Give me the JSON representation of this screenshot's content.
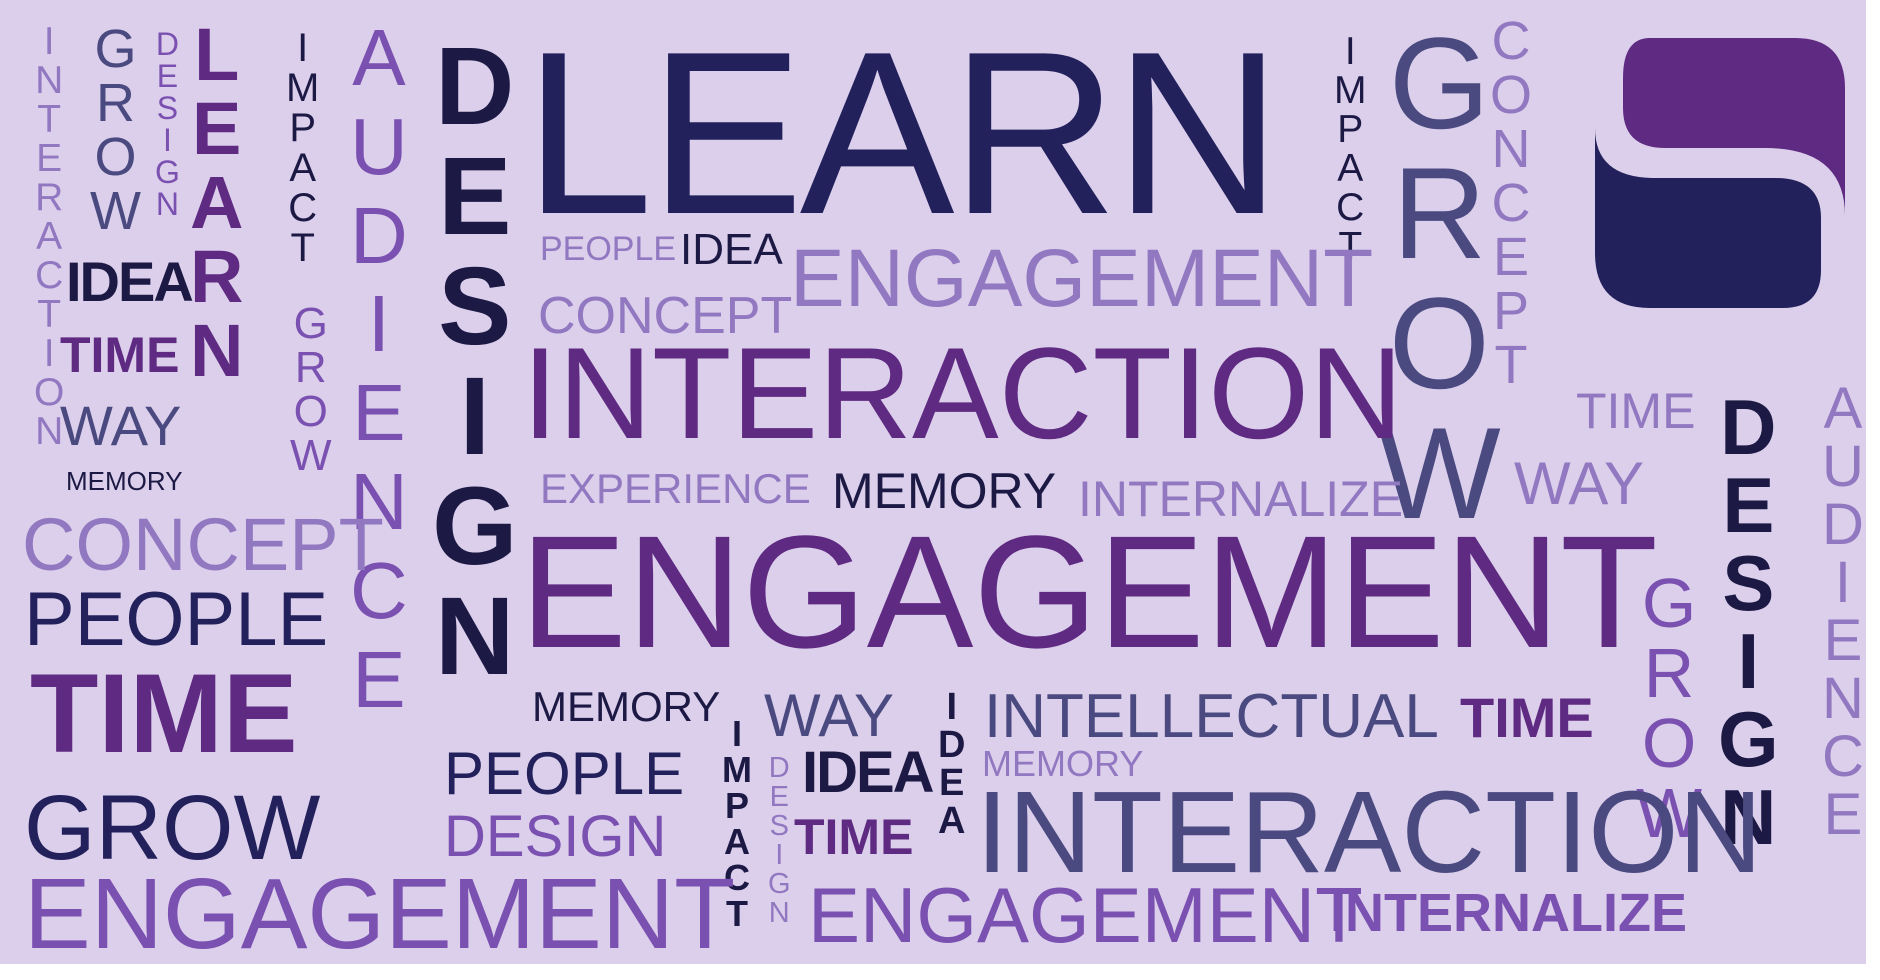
{
  "palette": {
    "background": "#dccfeb",
    "navy": "#23215c",
    "dark": "#1c1a45",
    "purple": "#5f2b82",
    "violet": "#7a50b0",
    "lavender": "#9178c0",
    "slate": "#4a4a80"
  },
  "logo": {
    "icon": "s-shape-logo",
    "top_color": "#5f2b82",
    "bottom_color": "#23215c"
  },
  "words": {
    "learn_big": "LEARN",
    "design_v1": "DESIGN",
    "learn_v": "LEARN",
    "interaction_big": "INTERACTION",
    "engagement_big": "ENGAGEMENT",
    "engagement_mid": "ENGAGEMENT",
    "engagement_bottom_left": "ENGAGEMENT",
    "engagement_bottom_mid": "ENGAGEMENT",
    "interaction_thin": "INTERACTION",
    "interaction_v": "INTERACTION",
    "grow_v1": "GROW",
    "design_v_small": "DESIGN",
    "impact_v1": "IMPACT",
    "grow_v2": "GROW",
    "audience_v1": "AUDIENCE",
    "impact_v2": "IMPACT",
    "grow_big_v": "GROW",
    "concept_v": "CONCEPT",
    "design_v2": "DESIGN",
    "audience_v2": "AUDIENCE",
    "grow_v3": "GROW",
    "impact_v3": "IMPACT",
    "design_v3": "DESIGN",
    "idea_v": "IDEA",
    "idea_1": "IDEA",
    "time_1": "TIME",
    "way_1": "WAY",
    "memory_1": "MEMORY",
    "concept_1": "CONCEPT",
    "people_1": "PEOPLE",
    "time_big": "TIME",
    "grow_big": "GROW",
    "people_small": "PEOPLE",
    "idea_2": "IDEA",
    "concept_2": "CONCEPT",
    "experience": "EXPERIENCE",
    "memory_2": "MEMORY",
    "internalize_1": "INTERNALIZE",
    "time_2": "TIME",
    "way_2": "WAY",
    "memory_3": "MEMORY",
    "people_2": "PEOPLE",
    "design_h": "DESIGN",
    "way_3": "WAY",
    "idea_3": "IDEA",
    "time_3": "TIME",
    "intellectual": "INTELLECTUAL",
    "time_4": "TIME",
    "memory_4": "MEMORY",
    "internalize_2": "INTERNALIZE"
  }
}
